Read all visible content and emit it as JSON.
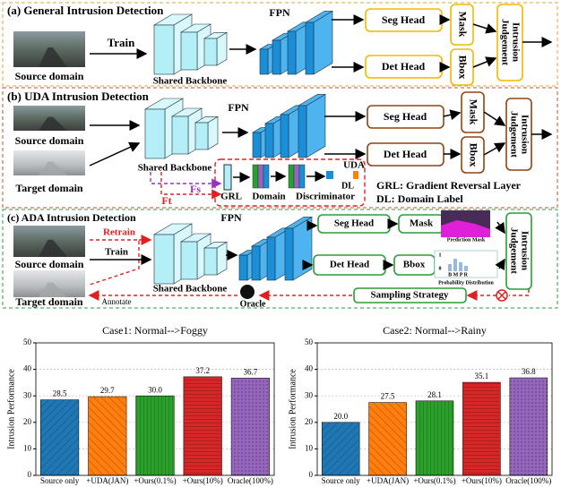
{
  "diagram": {
    "a": {
      "title": "(a) General Intrusion Detection",
      "train": "Train",
      "source": "Source domain",
      "backbone": "Shared Backbone",
      "fpn": "FPN",
      "seg": "Seg Head",
      "det": "Det Head",
      "mask": "Mask",
      "bbox": "Bbox",
      "judge": [
        "Intrusion",
        "Judgement"
      ]
    },
    "b": {
      "title": "(b) UDA Intrusion Detection",
      "source": "Source domain",
      "target": "Target domain",
      "backbone": "Shared Backbone",
      "fpn": "FPN",
      "seg": "Seg Head",
      "det": "Det Head",
      "mask": "Mask",
      "bbox": "Bbox",
      "judge": [
        "Intrusion",
        "Judgement"
      ],
      "fs": "Fs",
      "ft": "Ft",
      "grl": "GRL",
      "domain": "Domain",
      "discriminator": "Discriminator",
      "uda": "UDA",
      "dl": "DL",
      "legend": [
        "GRL: Gradient Reversal Layer",
        "DL: Domain Label"
      ]
    },
    "c": {
      "title": "(c) ADA Intrusion Detection",
      "retrain": "Retrain",
      "train": "Train",
      "source": "Source domain",
      "target": "Target domain",
      "annotate": "Annotate",
      "backbone": "Shared Backbone",
      "fpn": "FPN",
      "seg": "Seg Head",
      "det": "Det Head",
      "mask": "Mask",
      "bbox": "Bbox",
      "prediction_mask": "Prediction Mask",
      "probability": "Probability  Distribution",
      "prob_cats": "B M P R",
      "prob_ticks": [
        "1",
        "0"
      ],
      "sampling": "Sampling Strategy",
      "oracle": "Oracle",
      "judge": [
        "Intrusion",
        "Judgement"
      ]
    }
  },
  "chart_data": [
    {
      "type": "bar",
      "title": "Case1: Normal-->Foggy",
      "y_label": "Intrusion Performance",
      "categories": [
        "Source only",
        "+UDA(JAN)",
        "+Ours(0.1%)",
        "+Ours(10%)",
        "Oracle(100%)"
      ],
      "values": [
        28.5,
        29.7,
        30.0,
        37.2,
        36.7
      ],
      "value_labels": [
        "28.5",
        "29.7",
        "30.0",
        "37.2",
        "36.7"
      ],
      "colors": [
        "#1f77b4",
        "#ff7f0e",
        "#2ca02c",
        "#d62728",
        "#9467bd"
      ],
      "ylim": [
        0,
        50
      ],
      "yticks": [
        0,
        10,
        20,
        30,
        40,
        50
      ],
      "grid": true
    },
    {
      "type": "bar",
      "title": "Case2: Normal-->Rainy",
      "y_label": "Intrusion Performance",
      "categories": [
        "Source only",
        "+UDA(JAN)",
        "+Ours(0.1%)",
        "+Ours(10%)",
        "Oracle(100%)"
      ],
      "values": [
        20.0,
        27.5,
        28.1,
        35.1,
        36.8
      ],
      "value_labels": [
        "20.0",
        "27.5",
        "28.1",
        "35.1",
        "36.8"
      ],
      "colors": [
        "#1f77b4",
        "#ff7f0e",
        "#2ca02c",
        "#d62728",
        "#9467bd"
      ],
      "ylim": [
        0,
        50
      ],
      "yticks": [
        0,
        10,
        20,
        30,
        40,
        50
      ],
      "grid": true
    }
  ]
}
